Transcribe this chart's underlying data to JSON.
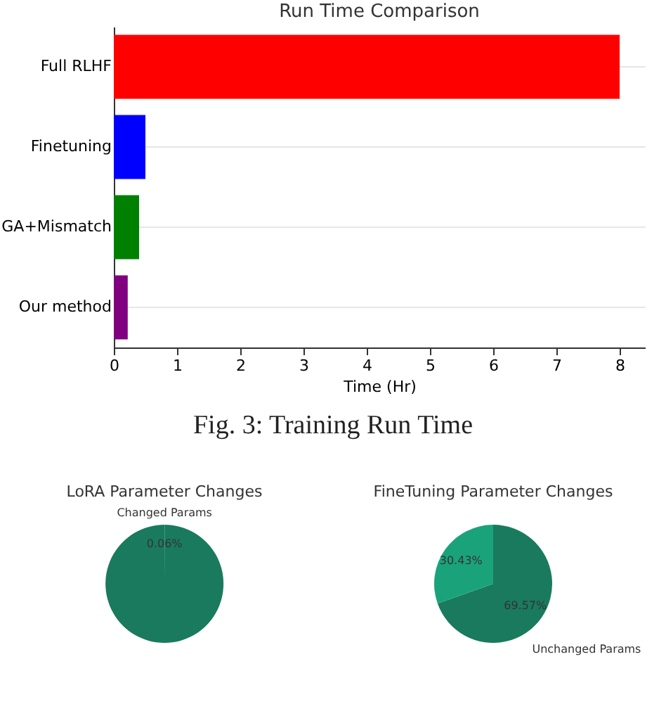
{
  "chart_data": [
    {
      "type": "bar",
      "title": "Run Time Comparison",
      "xlabel": "Time (Hr)",
      "orientation": "horizontal",
      "categories": [
        "Full RLHF",
        "Finetuning",
        "GA+Mismatch",
        "Our method"
      ],
      "values": [
        8,
        0.5,
        0.4,
        0.22
      ],
      "colors": [
        "#ff0000",
        "#0000ff",
        "#008000",
        "#800080"
      ],
      "xlim": [
        0,
        8.4
      ],
      "xticks": [
        0,
        1,
        2,
        3,
        4,
        5,
        6,
        7,
        8
      ],
      "grid": "y",
      "annotations": [
        "Fig. 3: Training Run Time"
      ]
    },
    {
      "type": "pie",
      "title": "LoRA Parameter Changes",
      "categories": [
        "Changed Params",
        null
      ],
      "values": [
        0.06,
        99.94
      ],
      "colors": [
        "#1aa37a",
        "#1a7a5e"
      ],
      "value_labels": [
        "0.06%",
        null
      ]
    },
    {
      "type": "pie",
      "title": "FineTuning Parameter Changes",
      "categories": [
        "Unchanged Params",
        null
      ],
      "values": [
        69.57,
        30.43
      ],
      "colors": [
        "#1a7a5e",
        "#1aa37a"
      ],
      "value_labels": [
        "69.57%",
        "30.43%"
      ]
    }
  ]
}
